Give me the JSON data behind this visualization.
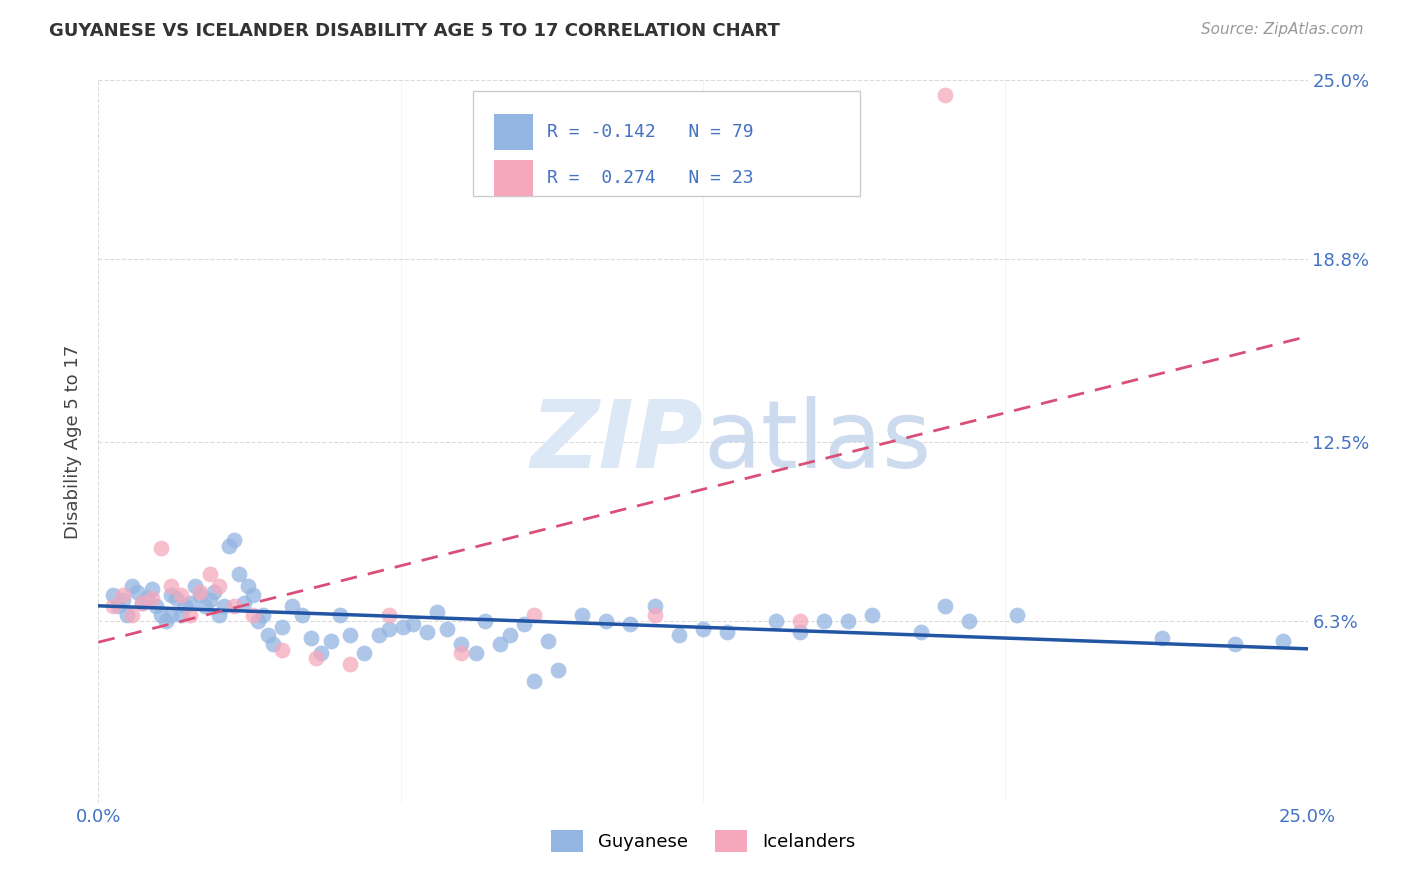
{
  "title": "GUYANESE VS ICELANDER DISABILITY AGE 5 TO 17 CORRELATION CHART",
  "source_text": "Source: ZipAtlas.com",
  "ylabel": "Disability Age 5 to 17",
  "x_min": 0.0,
  "x_max": 0.25,
  "y_min": 0.0,
  "y_max": 0.25,
  "x_tick_labels": [
    "0.0%",
    "25.0%"
  ],
  "x_tick_vals": [
    0.0,
    0.25
  ],
  "y_tick_labels": [
    "6.3%",
    "12.5%",
    "18.8%",
    "25.0%"
  ],
  "y_tick_values": [
    0.063,
    0.125,
    0.188,
    0.25
  ],
  "guyanese_color": "#93b5e1",
  "icelander_color": "#f5a8bc",
  "guyanese_line_color": "#2255a4",
  "icelander_line_color": "#d94f78",
  "background_color": "#ffffff",
  "grid_color": "#cccccc",
  "watermark_color": "#dce8f5",
  "guyanese_x": [
    0.003,
    0.004,
    0.005,
    0.006,
    0.007,
    0.008,
    0.009,
    0.01,
    0.011,
    0.012,
    0.013,
    0.014,
    0.015,
    0.015,
    0.016,
    0.017,
    0.018,
    0.019,
    0.02,
    0.021,
    0.022,
    0.023,
    0.024,
    0.025,
    0.026,
    0.027,
    0.028,
    0.029,
    0.03,
    0.031,
    0.032,
    0.033,
    0.034,
    0.035,
    0.036,
    0.038,
    0.04,
    0.042,
    0.044,
    0.046,
    0.048,
    0.05,
    0.052,
    0.055,
    0.058,
    0.06,
    0.063,
    0.065,
    0.068,
    0.07,
    0.072,
    0.075,
    0.078,
    0.08,
    0.083,
    0.085,
    0.088,
    0.09,
    0.093,
    0.095,
    0.1,
    0.105,
    0.11,
    0.115,
    0.12,
    0.125,
    0.13,
    0.14,
    0.145,
    0.15,
    0.155,
    0.16,
    0.17,
    0.175,
    0.18,
    0.19,
    0.22,
    0.235,
    0.245
  ],
  "guyanese_y": [
    0.072,
    0.068,
    0.07,
    0.065,
    0.075,
    0.073,
    0.069,
    0.071,
    0.074,
    0.068,
    0.065,
    0.063,
    0.072,
    0.065,
    0.071,
    0.065,
    0.068,
    0.069,
    0.075,
    0.072,
    0.068,
    0.07,
    0.073,
    0.065,
    0.068,
    0.089,
    0.091,
    0.079,
    0.069,
    0.075,
    0.072,
    0.063,
    0.065,
    0.058,
    0.055,
    0.061,
    0.068,
    0.065,
    0.057,
    0.052,
    0.056,
    0.065,
    0.058,
    0.052,
    0.058,
    0.06,
    0.061,
    0.062,
    0.059,
    0.066,
    0.06,
    0.055,
    0.052,
    0.063,
    0.055,
    0.058,
    0.062,
    0.042,
    0.056,
    0.046,
    0.065,
    0.063,
    0.062,
    0.068,
    0.058,
    0.06,
    0.059,
    0.063,
    0.059,
    0.063,
    0.063,
    0.065,
    0.059,
    0.068,
    0.063,
    0.065,
    0.057,
    0.055,
    0.056
  ],
  "icelander_x": [
    0.003,
    0.005,
    0.007,
    0.009,
    0.011,
    0.013,
    0.015,
    0.017,
    0.019,
    0.021,
    0.023,
    0.025,
    0.028,
    0.032,
    0.038,
    0.045,
    0.052,
    0.06,
    0.075,
    0.09,
    0.115,
    0.145,
    0.175
  ],
  "icelander_y": [
    0.068,
    0.072,
    0.065,
    0.069,
    0.071,
    0.088,
    0.075,
    0.072,
    0.065,
    0.073,
    0.079,
    0.075,
    0.068,
    0.065,
    0.053,
    0.05,
    0.048,
    0.065,
    0.052,
    0.065,
    0.065,
    0.063,
    0.245
  ]
}
